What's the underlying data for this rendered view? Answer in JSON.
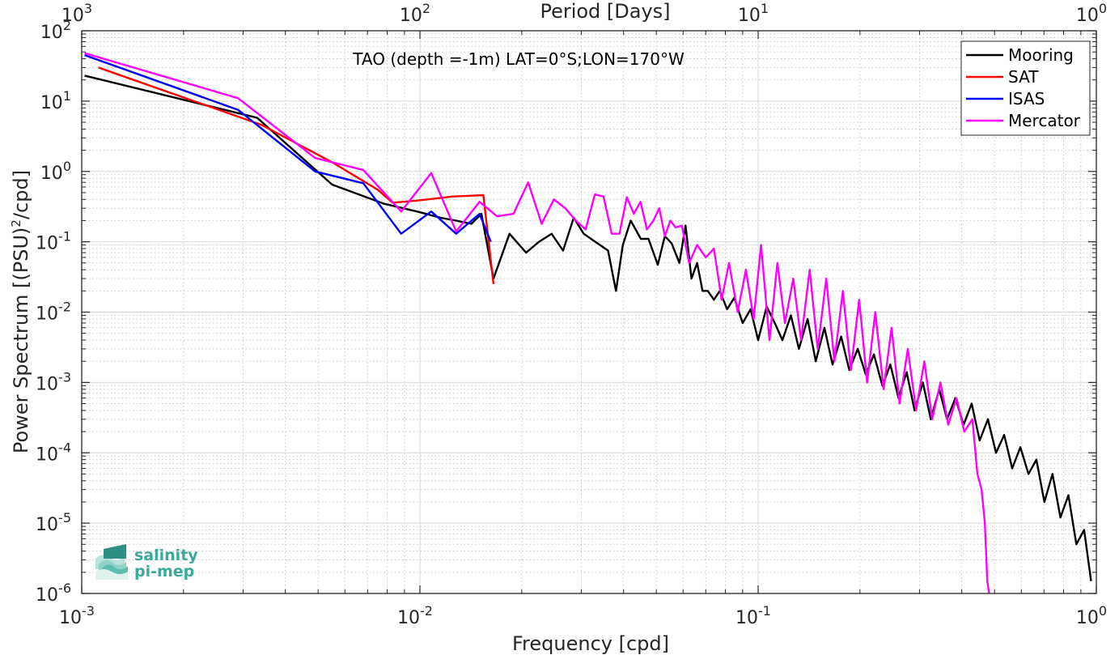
{
  "chart_data": {
    "type": "line",
    "title": "TAO (depth =-1m) LAT=0°S;LON=170°W",
    "xlabel": "Frequency [cpd]",
    "ylabel": "Power Spectrum [(PSU)",
    "ylabel_sup": "2",
    "ylabel_suffix": "/cpd]",
    "x2label": "Period [Days]",
    "xscale": "log",
    "yscale": "log",
    "xlim": [
      0.001,
      1
    ],
    "ylim": [
      1e-06,
      100
    ],
    "grid": true,
    "legend_position": "top-right",
    "x_ticks": [
      {
        "base": "10",
        "exp": "-3"
      },
      {
        "base": "10",
        "exp": "-2"
      },
      {
        "base": "10",
        "exp": "-1"
      },
      {
        "base": "10",
        "exp": "0"
      }
    ],
    "x2_ticks": [
      {
        "base": "10",
        "exp": "3"
      },
      {
        "base": "10",
        "exp": "2"
      },
      {
        "base": "10",
        "exp": "1"
      },
      {
        "base": "10",
        "exp": "0"
      }
    ],
    "y_ticks": [
      {
        "base": "10",
        "exp": "2"
      },
      {
        "base": "10",
        "exp": "1"
      },
      {
        "base": "10",
        "exp": "0"
      },
      {
        "base": "10",
        "exp": "-1"
      },
      {
        "base": "10",
        "exp": "-2"
      },
      {
        "base": "10",
        "exp": "-3"
      },
      {
        "base": "10",
        "exp": "-4"
      },
      {
        "base": "10",
        "exp": "-5"
      },
      {
        "base": "10",
        "exp": "-6"
      }
    ],
    "series": [
      {
        "name": "Mooring",
        "color": "#000000",
        "x": [
          0.00102,
          0.0033,
          0.0055,
          0.0078,
          0.0098,
          0.0115,
          0.0128,
          0.0142,
          0.0152,
          0.0165,
          0.0184,
          0.0206,
          0.0225,
          0.0245,
          0.0265,
          0.0285,
          0.0305,
          0.033,
          0.036,
          0.038,
          0.0398,
          0.042,
          0.045,
          0.0474,
          0.0505,
          0.053,
          0.0555,
          0.0585,
          0.061,
          0.0635,
          0.066,
          0.0685,
          0.071,
          0.074,
          0.077,
          0.081,
          0.085,
          0.09,
          0.095,
          0.1,
          0.106,
          0.112,
          0.118,
          0.125,
          0.132,
          0.14,
          0.148,
          0.157,
          0.166,
          0.176,
          0.186,
          0.197,
          0.208,
          0.22,
          0.233,
          0.246,
          0.26,
          0.275,
          0.29,
          0.307,
          0.324,
          0.343,
          0.362,
          0.383,
          0.405,
          0.428,
          0.452,
          0.478,
          0.505,
          0.534,
          0.564,
          0.596,
          0.63,
          0.665,
          0.702,
          0.742,
          0.783,
          0.827,
          0.873,
          0.92,
          0.965
        ],
        "y": [
          23,
          5.8,
          0.65,
          0.35,
          0.27,
          0.22,
          0.2,
          0.18,
          0.25,
          0.03,
          0.13,
          0.07,
          0.1,
          0.13,
          0.075,
          0.22,
          0.13,
          0.1,
          0.075,
          0.02,
          0.09,
          0.2,
          0.11,
          0.11,
          0.047,
          0.12,
          0.095,
          0.05,
          0.17,
          0.03,
          0.05,
          0.02,
          0.02,
          0.015,
          0.02,
          0.011,
          0.016,
          0.007,
          0.011,
          0.004,
          0.012,
          0.007,
          0.004,
          0.009,
          0.003,
          0.008,
          0.002,
          0.006,
          0.0018,
          0.0045,
          0.0015,
          0.003,
          0.0013,
          0.0025,
          0.0009,
          0.0018,
          0.0006,
          0.0014,
          0.0004,
          0.001,
          0.0003,
          0.0008,
          0.0003,
          0.0006,
          0.00025,
          0.0005,
          0.00015,
          0.0003,
          0.0001,
          0.00018,
          6e-05,
          0.00012,
          5e-05,
          8e-05,
          2e-05,
          5e-05,
          1.2e-05,
          2.5e-05,
          5e-06,
          8e-06,
          1.5e-06
        ]
      },
      {
        "name": "SAT",
        "color": "#ff0000",
        "x": [
          0.00112,
          0.0034,
          0.0055,
          0.0075,
          0.0083,
          0.0095,
          0.011,
          0.0125,
          0.0138,
          0.0154,
          0.0165
        ],
        "y": [
          30,
          4.6,
          1.35,
          0.55,
          0.36,
          0.38,
          0.41,
          0.44,
          0.45,
          0.46,
          0.025
        ]
      },
      {
        "name": "ISAS",
        "color": "#0000ff",
        "x": [
          0.00102,
          0.0029,
          0.0049,
          0.0068,
          0.0088,
          0.0108,
          0.0128,
          0.015,
          0.0162
        ],
        "y": [
          45,
          7.5,
          1.0,
          0.68,
          0.13,
          0.27,
          0.13,
          0.25,
          0.1
        ]
      },
      {
        "name": "Mercator",
        "color": "#ff00ff",
        "x": [
          0.00102,
          0.0029,
          0.0049,
          0.0068,
          0.0088,
          0.0108,
          0.0128,
          0.015,
          0.0169,
          0.0189,
          0.0209,
          0.0229,
          0.0249,
          0.0269,
          0.0289,
          0.0309,
          0.0329,
          0.0349,
          0.0369,
          0.0389,
          0.0409,
          0.0429,
          0.0449,
          0.0469,
          0.049,
          0.051,
          0.053,
          0.055,
          0.057,
          0.0595,
          0.0625,
          0.066,
          0.07,
          0.074,
          0.078,
          0.082,
          0.087,
          0.092,
          0.097,
          0.102,
          0.108,
          0.114,
          0.12,
          0.127,
          0.134,
          0.142,
          0.15,
          0.159,
          0.168,
          0.178,
          0.188,
          0.199,
          0.21,
          0.222,
          0.235,
          0.248,
          0.262,
          0.277,
          0.293,
          0.31,
          0.327,
          0.346,
          0.365,
          0.386,
          0.407,
          0.43,
          0.445,
          0.458,
          0.468,
          0.476,
          0.482
        ],
        "y": [
          48,
          11,
          1.55,
          1.05,
          0.27,
          0.95,
          0.14,
          0.37,
          0.23,
          0.25,
          0.7,
          0.18,
          0.4,
          0.3,
          0.2,
          0.15,
          0.47,
          0.44,
          0.13,
          0.13,
          0.43,
          0.25,
          0.37,
          0.15,
          0.2,
          0.3,
          0.12,
          0.2,
          0.16,
          0.17,
          0.05,
          0.09,
          0.06,
          0.08,
          0.015,
          0.05,
          0.01,
          0.04,
          0.008,
          0.09,
          0.004,
          0.05,
          0.007,
          0.03,
          0.004,
          0.04,
          0.003,
          0.03,
          0.002,
          0.02,
          0.0015,
          0.015,
          0.001,
          0.01,
          0.0008,
          0.006,
          0.0005,
          0.003,
          0.0004,
          0.002,
          0.0003,
          0.001,
          0.00025,
          0.0006,
          0.0002,
          0.0003,
          5e-05,
          3e-05,
          1e-05,
          1.5e-06,
          1e-06
        ]
      }
    ]
  },
  "logo": {
    "line1": "salinity",
    "line2": "pi-mep",
    "color": "#3aa99b"
  }
}
